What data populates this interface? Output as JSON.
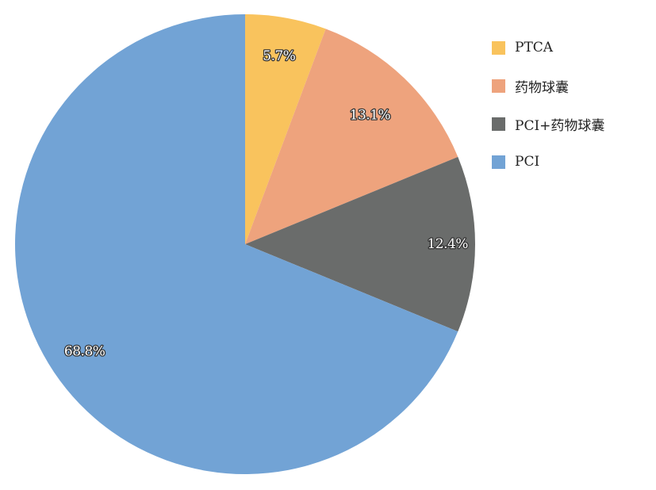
{
  "chart_data": {
    "type": "pie",
    "start_angle_deg": 0,
    "direction": "clockwise",
    "legend_position": "right",
    "slices": [
      {
        "label": "PTCA",
        "value": 5.7,
        "value_label": "5.7%",
        "color": "#f9c35d"
      },
      {
        "label": "药物球囊",
        "value": 13.1,
        "value_label": "13.1%",
        "color": "#eea37d"
      },
      {
        "label": "PCI+药物球囊",
        "value": 12.4,
        "value_label": "12.4%",
        "color": "#6a6c6b"
      },
      {
        "label": "PCI",
        "value": 68.8,
        "value_label": "68.8%",
        "color": "#72a3d5"
      }
    ]
  }
}
